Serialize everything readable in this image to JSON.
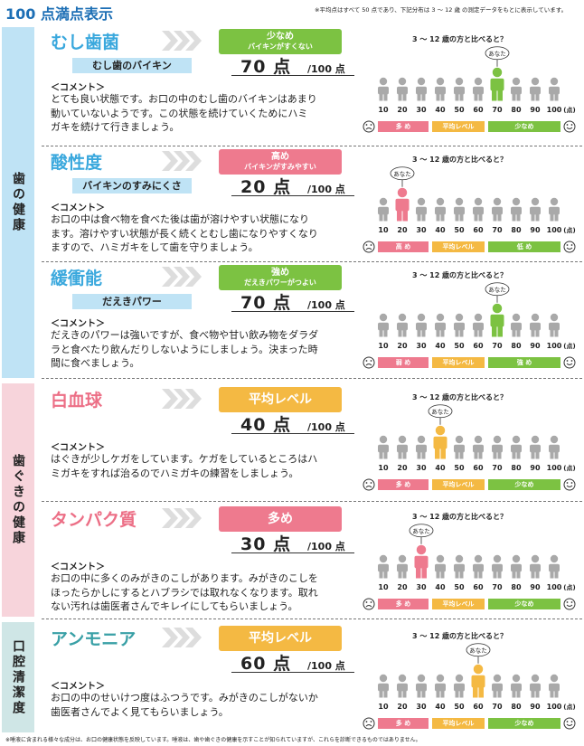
{
  "header": {
    "title": "100 点満点表示",
    "note": "※平均点はすべて 50 点であり、下記分布は 3 ～ 12 歳 の測定データをもとに表示しています。"
  },
  "side_labels": {
    "teeth": "歯の健康",
    "gums": "歯ぐきの健康",
    "oral": "口腔清潔度"
  },
  "common": {
    "compare": "3 ～ 12 歳の方と比べると？",
    "you": "あなた",
    "comment_label": "＜コメント＞",
    "score_unit": "点",
    "score_max": "/100 点",
    "ticks": [
      "10",
      "20",
      "30",
      "40",
      "50",
      "60",
      "70",
      "80",
      "90",
      "100"
    ],
    "tick_unit": "(点)"
  },
  "colors": {
    "blue_section": "#bfe3f5",
    "pink_section": "#f7d4db",
    "teal_section": "#cfe6e6",
    "green": "#7cc242",
    "pink": "#ee7a8e",
    "orange": "#f4b943",
    "gray_person": "#a9a9a9"
  },
  "sections": [
    {
      "name": "むし歯菌",
      "subtitle": "むし歯のバイキン",
      "badge1": "少なめ",
      "badge2": "バイキンがすくない",
      "score": "70",
      "you_index": 6,
      "comment": [
        "とても良い状態です。お口の中のむし歯のバイキンはあまり",
        "動いていないようです。この状態を続けていくためにハミ",
        "ガキを続けて行きましょう。"
      ],
      "scale": [
        "多 め",
        "平均レベル",
        "少なめ"
      ]
    },
    {
      "name": "酸性度",
      "subtitle": "バイキンのすみにくさ",
      "badge1": "高め",
      "badge2": "バイキンがすみやすい",
      "score": "20",
      "you_index": 1,
      "comment": [
        "お口の中は食べ物を食べた後は歯が溶けやすい状態になり",
        "ます。溶けやすい状態が長く続くとむし歯になりやすくなり",
        "ますので、ハミガキをして歯を守りましょう。"
      ],
      "scale": [
        "高 め",
        "平均レベル",
        "低 め"
      ]
    },
    {
      "name": "緩衝能",
      "subtitle": "だえきパワー",
      "badge1": "強め",
      "badge2": "だえきパワーがつよい",
      "score": "70",
      "you_index": 6,
      "comment": [
        "だえきのパワーは強いですが、食べ物や甘い飲み物をダラダ",
        "ラと食べたり飲んだりしないようにしましょう。決まった時",
        "間に食べましょう。"
      ],
      "scale": [
        "弱 め",
        "平均レベル",
        "強 め"
      ]
    },
    {
      "name": "白血球",
      "badge1": "平均レベル",
      "score": "40",
      "you_index": 3,
      "comment": [
        "はぐきが少しケガをしています。ケガをしているところはハ",
        "ミガキをすれば治るのでハミガキの練習をしましょう。"
      ],
      "scale": [
        "多 め",
        "平均レベル",
        "少なめ"
      ]
    },
    {
      "name": "タンパク質",
      "badge1": "多め",
      "score": "30",
      "you_index": 2,
      "comment": [
        "お口の中に多くのみがきのこしがあります。みがきのこしを",
        "ほったらかしにするとハブラシでは取れなくなります。取れ",
        "ない汚れは歯医者さんでキレイにしてもらいましょう。"
      ],
      "scale": [
        "多 め",
        "平均レベル",
        "少なめ"
      ]
    },
    {
      "name": "アンモニア",
      "badge1": "平均レベル",
      "score": "60",
      "you_index": 5,
      "comment": [
        "お口の中のせいけつ度はふつうです。みがきのこしがないか",
        "歯医者さんでよく見てもらいましょう。"
      ],
      "scale": [
        "多 め",
        "平均レベル",
        "少なめ"
      ]
    }
  ],
  "footer": {
    "note": "※唾液に含まれる様々な成分は、お口の健康状態を反映しています。唾液は、歯や歯ぐきの健康を示すことが知られていますが、これらを診断できるものではありません。"
  }
}
